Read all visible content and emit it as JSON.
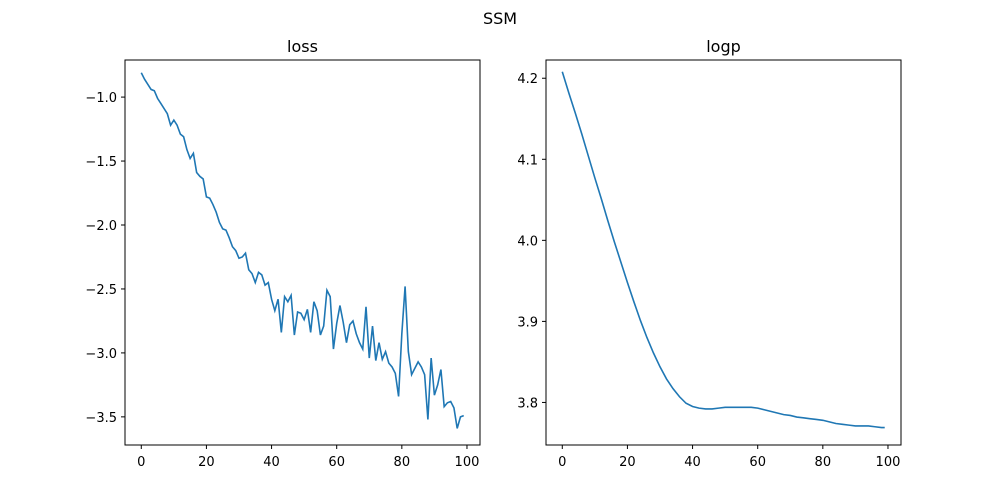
{
  "figure": {
    "title": "SSM"
  },
  "chart_data": [
    {
      "type": "line",
      "title": "loss",
      "xlabel": "",
      "ylabel": "",
      "xlim": [
        -5,
        104
      ],
      "ylim": [
        -3.72,
        -0.71
      ],
      "xticks": [
        0,
        20,
        40,
        60,
        80,
        100
      ],
      "yticks": [
        -3.5,
        -3.0,
        -2.5,
        -2.0,
        -1.5,
        -1.0
      ],
      "xticklabels": [
        "0",
        "20",
        "40",
        "60",
        "80",
        "100"
      ],
      "yticklabels": [
        "−3.5",
        "−3.0",
        "−2.5",
        "−2.0",
        "−1.5",
        "−1.0"
      ],
      "grid": false,
      "series": [
        {
          "color": "#1f77b4",
          "x": [
            0,
            1,
            2,
            3,
            4,
            5,
            6,
            7,
            8,
            9,
            10,
            11,
            12,
            13,
            14,
            15,
            16,
            17,
            18,
            19,
            20,
            21,
            22,
            23,
            24,
            25,
            26,
            27,
            28,
            29,
            30,
            31,
            32,
            33,
            34,
            35,
            36,
            37,
            38,
            39,
            40,
            41,
            42,
            43,
            44,
            45,
            46,
            47,
            48,
            49,
            50,
            51,
            52,
            53,
            54,
            55,
            56,
            57,
            58,
            59,
            60,
            61,
            62,
            63,
            64,
            65,
            66,
            67,
            68,
            69,
            70,
            71,
            72,
            73,
            74,
            75,
            76,
            77,
            78,
            79,
            80,
            81,
            82,
            83,
            84,
            85,
            86,
            87,
            88,
            89,
            90,
            91,
            92,
            93,
            94,
            95,
            96,
            97,
            98,
            99
          ],
          "y": [
            -0.81,
            -0.86,
            -0.9,
            -0.94,
            -0.95,
            -1.01,
            -1.05,
            -1.09,
            -1.13,
            -1.22,
            -1.18,
            -1.22,
            -1.29,
            -1.31,
            -1.41,
            -1.48,
            -1.44,
            -1.59,
            -1.62,
            -1.64,
            -1.78,
            -1.79,
            -1.84,
            -1.9,
            -1.98,
            -2.03,
            -2.04,
            -2.1,
            -2.17,
            -2.2,
            -2.26,
            -2.25,
            -2.22,
            -2.35,
            -2.38,
            -2.45,
            -2.37,
            -2.39,
            -2.47,
            -2.45,
            -2.58,
            -2.67,
            -2.58,
            -2.84,
            -2.56,
            -2.6,
            -2.55,
            -2.86,
            -2.68,
            -2.69,
            -2.74,
            -2.66,
            -2.84,
            -2.6,
            -2.67,
            -2.86,
            -2.79,
            -2.51,
            -2.56,
            -2.97,
            -2.77,
            -2.63,
            -2.76,
            -2.92,
            -2.78,
            -2.75,
            -2.85,
            -2.92,
            -2.97,
            -2.64,
            -3.04,
            -2.79,
            -3.06,
            -2.92,
            -3.05,
            -2.99,
            -3.08,
            -3.11,
            -3.16,
            -3.34,
            -2.85,
            -2.48,
            -2.99,
            -3.17,
            -3.12,
            -3.07,
            -3.11,
            -3.17,
            -3.52,
            -3.04,
            -3.33,
            -3.25,
            -3.13,
            -3.42,
            -3.39,
            -3.38,
            -3.43,
            -3.59,
            -3.5,
            -3.49
          ]
        }
      ]
    },
    {
      "type": "line",
      "title": "logp",
      "xlabel": "",
      "ylabel": "",
      "xlim": [
        -5,
        104
      ],
      "ylim": [
        3.7475,
        4.2225
      ],
      "xticks": [
        0,
        20,
        40,
        60,
        80,
        100
      ],
      "yticks": [
        3.8,
        3.9,
        4.0,
        4.1,
        4.2
      ],
      "xticklabels": [
        "0",
        "20",
        "40",
        "60",
        "80",
        "100"
      ],
      "yticklabels": [
        "3.8",
        "3.9",
        "4.0",
        "4.1",
        "4.2"
      ],
      "grid": false,
      "series": [
        {
          "color": "#1f77b4",
          "x": [
            0,
            2,
            4,
            6,
            8,
            10,
            12,
            14,
            16,
            18,
            20,
            22,
            24,
            26,
            28,
            30,
            32,
            34,
            36,
            38,
            40,
            42,
            44,
            46,
            48,
            50,
            52,
            54,
            56,
            58,
            60,
            62,
            64,
            66,
            68,
            70,
            72,
            74,
            76,
            78,
            80,
            82,
            84,
            86,
            88,
            90,
            92,
            94,
            96,
            98,
            99
          ],
          "y": [
            4.208,
            4.182,
            4.157,
            4.131,
            4.104,
            4.077,
            4.051,
            4.024,
            3.998,
            3.973,
            3.948,
            3.924,
            3.901,
            3.88,
            3.861,
            3.844,
            3.829,
            3.817,
            3.807,
            3.799,
            3.795,
            3.793,
            3.792,
            3.792,
            3.793,
            3.794,
            3.794,
            3.794,
            3.794,
            3.794,
            3.793,
            3.791,
            3.789,
            3.787,
            3.785,
            3.784,
            3.782,
            3.781,
            3.78,
            3.779,
            3.778,
            3.776,
            3.774,
            3.773,
            3.772,
            3.771,
            3.771,
            3.771,
            3.77,
            3.769,
            3.769
          ]
        }
      ]
    }
  ]
}
